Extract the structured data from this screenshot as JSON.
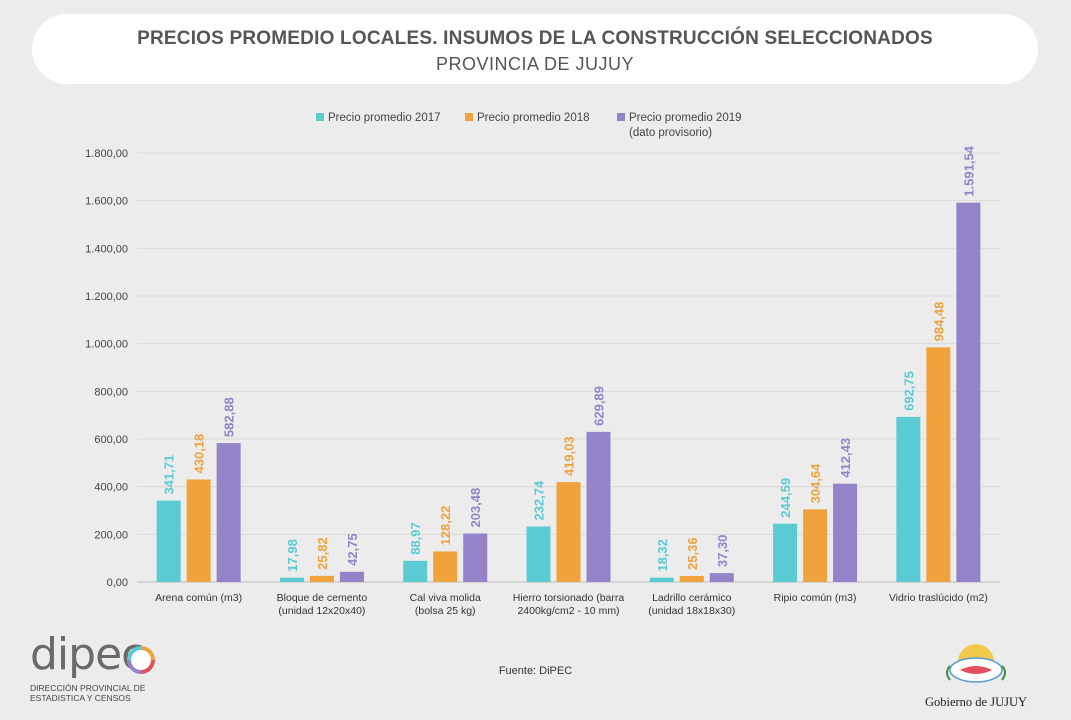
{
  "header": {
    "title": "PRECIOS PROMEDIO LOCALES. INSUMOS DE LA CONSTRUCCIÓN SELECCIONADOS",
    "subtitle": "PROVINCIA DE JUJUY"
  },
  "footer": {
    "source": "Fuente: DiPEC",
    "dipec_name": "dipec",
    "dipec_line1": "DIRECCIÓN PROVINCIAL DE",
    "dipec_line2": "ESTADISTICA Y CENSOS",
    "gov_name": "Gobierno de JUJUY"
  },
  "colors": {
    "s2017": "#5bcbd3",
    "s2018": "#f0a23c",
    "s2019": "#9483c9",
    "grid": "#d9d9d9",
    "axis": "#bbbbbb"
  },
  "chart_data": {
    "type": "bar",
    "title": "PRECIOS PROMEDIO LOCALES. INSUMOS DE LA CONSTRUCCIÓN SELECCIONADOS",
    "subtitle": "PROVINCIA DE JUJUY",
    "xlabel": "",
    "ylabel": "",
    "ylim": [
      0,
      1800
    ],
    "yticks": [
      "0,00",
      "200,00",
      "400,00",
      "600,00",
      "800,00",
      "1.000,00",
      "1.200,00",
      "1.400,00",
      "1.600,00",
      "1.800,00"
    ],
    "grid": true,
    "legend_position": "top",
    "categories": [
      [
        "Arena común (m3)"
      ],
      [
        "Bloque de cemento",
        "(unidad 12x20x40)"
      ],
      [
        "Cal viva molida",
        "(bolsa 25 kg)"
      ],
      [
        "Hierro torsionado (barra",
        "2400kg/cm2 - 10 mm)"
      ],
      [
        "Ladrillo cerámico",
        "(unidad 18x18x30)"
      ],
      [
        "Ripio común (m3)"
      ],
      [
        "Vidrio traslúcido (m2)"
      ]
    ],
    "series": [
      {
        "name": "Precio promedio 2017",
        "legend": [
          "Precio promedio 2017"
        ],
        "values": [
          341.71,
          17.98,
          88.97,
          232.74,
          18.32,
          244.59,
          692.75
        ],
        "labels": [
          "341,71",
          "17,98",
          "88,97",
          "232,74",
          "18,32",
          "244,59",
          "692,75"
        ]
      },
      {
        "name": "Precio promedio 2018",
        "legend": [
          "Precio promedio 2018"
        ],
        "values": [
          430.18,
          25.82,
          128.22,
          419.03,
          25.36,
          304.64,
          984.48
        ],
        "labels": [
          "430,18",
          "25,82",
          "128,22",
          "419,03",
          "25,36",
          "304,64",
          "984,48"
        ]
      },
      {
        "name": "Precio promedio 2019 (dato provisorio)",
        "legend": [
          "Precio promedio 2019",
          "(dato provisorio)"
        ],
        "values": [
          582.88,
          42.75,
          203.48,
          629.89,
          37.3,
          412.43,
          1591.54
        ],
        "labels": [
          "582,88",
          "42,75",
          "203,48",
          "629,89",
          "37,30",
          "412,43",
          "1.591,54"
        ]
      }
    ]
  }
}
